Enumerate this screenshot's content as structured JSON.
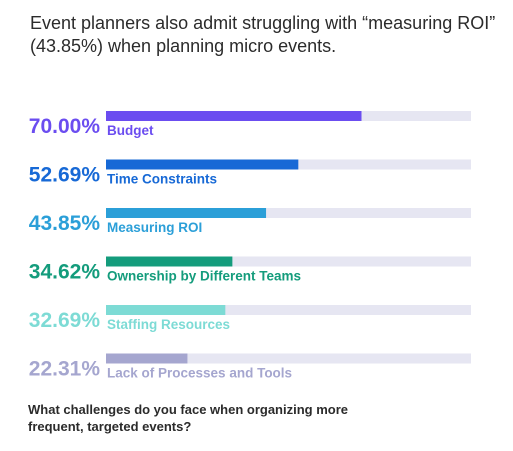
{
  "chart_data": {
    "type": "bar",
    "orientation": "horizontal",
    "title": "Event planners also admit struggling with “measuring ROI” (43.85%) when planning micro events.",
    "footnote": "What challenges do you face when organizing more frequent, targeted events?",
    "xlim": [
      0,
      100
    ],
    "track_color": "#e6e6f2",
    "categories": [
      "Budget",
      "Time Constraints",
      "Measuring ROI",
      "Ownership by Different Teams",
      "Staffing Resources",
      "Lack of Processes and Tools"
    ],
    "values": [
      70.0,
      52.69,
      43.85,
      34.62,
      32.69,
      22.31
    ],
    "value_labels": [
      "70.00%",
      "52.69%",
      "43.85%",
      "34.62%",
      "32.69%",
      "22.31%"
    ],
    "colors": [
      "#6b4df0",
      "#1769d6",
      "#2b9fd8",
      "#149c7c",
      "#7ddbd5",
      "#a5a6cf"
    ],
    "label_colors": [
      "#6b4df0",
      "#1769d6",
      "#2b9fd8",
      "#149c7c",
      "#7ddbd5",
      "#a5a6cf"
    ]
  }
}
